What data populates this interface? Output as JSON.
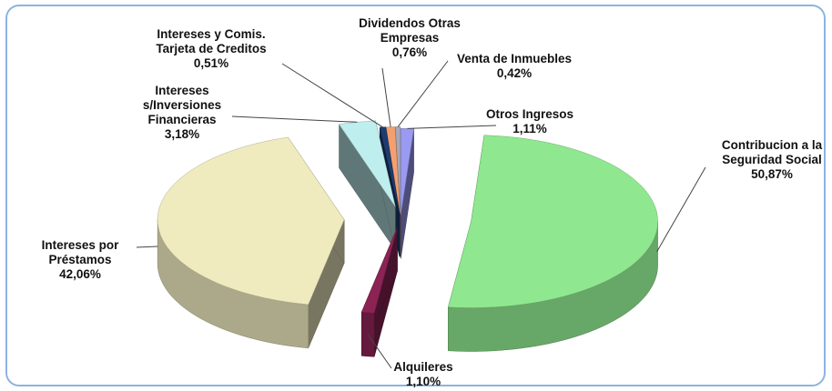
{
  "chart_data": {
    "type": "pie3d",
    "categories": [
      "Otros Ingresos",
      "Contribucion a la Seguridad Social",
      "Alquileres",
      "Intereses por Préstamos",
      "Intereses s/Inversiones Financieras",
      "Intereses y Comis. Tarjeta de Creditos",
      "Dividendos Otras Empresas",
      "Venta de Inmuebles"
    ],
    "values": [
      1.11,
      50.87,
      1.1,
      42.06,
      3.18,
      0.51,
      0.76,
      0.42
    ],
    "value_labels": [
      "1,11%",
      "50,87%",
      "1,10%",
      "42,06%",
      "3,18%",
      "0,51%",
      "0,76%",
      "0,42%"
    ],
    "colors": [
      "#9a9af2",
      "#8fe88f",
      "#8c2355",
      "#efebbf",
      "#bfeeee",
      "#1d3c72",
      "#f2a070",
      "#a8a8b8"
    ]
  }
}
